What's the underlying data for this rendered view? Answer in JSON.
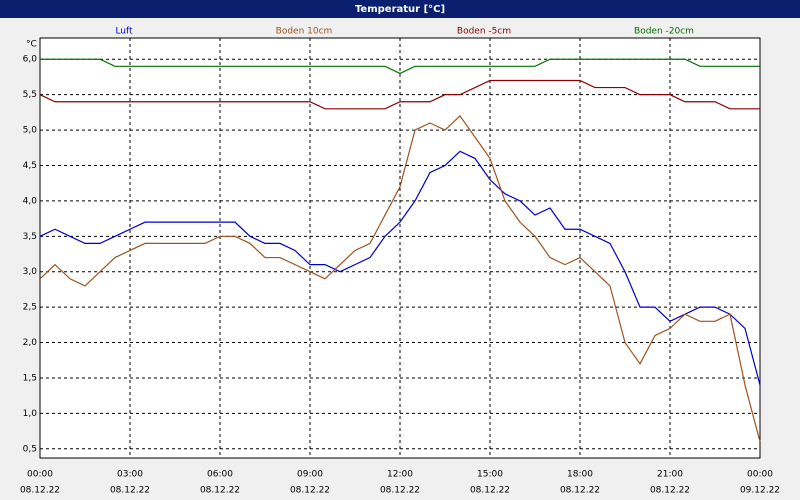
{
  "chart_data": {
    "type": "line",
    "title": "Temperatur [°C]",
    "y_unit": "°C",
    "x": [
      0,
      0.5,
      1,
      1.5,
      2,
      2.5,
      3,
      3.5,
      4,
      4.5,
      5,
      5.5,
      6,
      6.5,
      7,
      7.5,
      8,
      8.5,
      9,
      9.5,
      10,
      10.5,
      11,
      11.5,
      12,
      12.5,
      13,
      13.5,
      14,
      14.5,
      15,
      15.5,
      16,
      16.5,
      17,
      17.5,
      18,
      18.5,
      19,
      19.5,
      20,
      20.5,
      21,
      21.5,
      22,
      22.5,
      23,
      23.5,
      24
    ],
    "series": [
      {
        "name": "Luft",
        "color": "#0000cc",
        "values": [
          3.5,
          3.6,
          3.5,
          3.4,
          3.4,
          3.5,
          3.6,
          3.7,
          3.7,
          3.7,
          3.7,
          3.7,
          3.7,
          3.7,
          3.5,
          3.4,
          3.4,
          3.3,
          3.1,
          3.1,
          3.0,
          3.1,
          3.2,
          3.5,
          3.7,
          4.0,
          4.4,
          4.5,
          4.7,
          4.6,
          4.3,
          4.1,
          4.0,
          3.8,
          3.9,
          3.6,
          3.6,
          3.5,
          3.4,
          3.0,
          2.5,
          2.5,
          2.3,
          2.4,
          2.5,
          2.5,
          2.4,
          2.2,
          1.4
        ]
      },
      {
        "name": "Boden 10cm",
        "color": "#a0521e",
        "values": [
          2.9,
          3.1,
          2.9,
          2.8,
          3.0,
          3.2,
          3.3,
          3.4,
          3.4,
          3.4,
          3.4,
          3.4,
          3.5,
          3.5,
          3.4,
          3.2,
          3.2,
          3.1,
          3.0,
          2.9,
          3.1,
          3.3,
          3.4,
          3.8,
          4.2,
          5.0,
          5.1,
          5.0,
          5.2,
          4.9,
          4.6,
          4.0,
          3.7,
          3.5,
          3.2,
          3.1,
          3.2,
          3.0,
          2.8,
          2.0,
          1.7,
          2.1,
          2.2,
          2.4,
          2.3,
          2.3,
          2.4,
          1.4,
          0.6
        ]
      },
      {
        "name": "Boden -5cm",
        "color": "#8b0000",
        "values": [
          5.5,
          5.4,
          5.4,
          5.4,
          5.4,
          5.4,
          5.4,
          5.4,
          5.4,
          5.4,
          5.4,
          5.4,
          5.4,
          5.4,
          5.4,
          5.4,
          5.4,
          5.4,
          5.4,
          5.3,
          5.3,
          5.3,
          5.3,
          5.3,
          5.4,
          5.4,
          5.4,
          5.5,
          5.5,
          5.6,
          5.7,
          5.7,
          5.7,
          5.7,
          5.7,
          5.7,
          5.7,
          5.6,
          5.6,
          5.6,
          5.5,
          5.5,
          5.5,
          5.4,
          5.4,
          5.4,
          5.3,
          5.3,
          5.3
        ]
      },
      {
        "name": "Boden -20cm",
        "color": "#007000",
        "values": [
          6.0,
          6.0,
          6.0,
          6.0,
          6.0,
          5.9,
          5.9,
          5.9,
          5.9,
          5.9,
          5.9,
          5.9,
          5.9,
          5.9,
          5.9,
          5.9,
          5.9,
          5.9,
          5.9,
          5.9,
          5.9,
          5.9,
          5.9,
          5.9,
          5.8,
          5.9,
          5.9,
          5.9,
          5.9,
          5.9,
          5.9,
          5.9,
          5.9,
          5.9,
          6.0,
          6.0,
          6.0,
          6.0,
          6.0,
          6.0,
          6.0,
          6.0,
          6.0,
          6.0,
          5.9,
          5.9,
          5.9,
          5.9,
          5.9
        ]
      }
    ],
    "xlim": [
      0,
      24
    ],
    "xticks": [
      {
        "value": 0,
        "label": "00:00",
        "date": "08.12.22"
      },
      {
        "value": 3,
        "label": "03:00",
        "date": "08.12.22"
      },
      {
        "value": 6,
        "label": "06:00",
        "date": "08.12.22"
      },
      {
        "value": 9,
        "label": "09:00",
        "date": "08.12.22"
      },
      {
        "value": 12,
        "label": "12:00",
        "date": "08.12.22"
      },
      {
        "value": 15,
        "label": "15:00",
        "date": "08.12.22"
      },
      {
        "value": 18,
        "label": "18:00",
        "date": "08.12.22"
      },
      {
        "value": 21,
        "label": "21:00",
        "date": "08.12.22"
      },
      {
        "value": 24,
        "label": "00:00",
        "date": "09.12.22"
      }
    ],
    "ylim": [
      0.37,
      6.3
    ],
    "yticks": [
      {
        "value": 0.5,
        "label": "0,5"
      },
      {
        "value": 1,
        "label": "1,0"
      },
      {
        "value": 1.5,
        "label": "1,5"
      },
      {
        "value": 2,
        "label": "2,0"
      },
      {
        "value": 2.5,
        "label": "2,5"
      },
      {
        "value": 3,
        "label": "3,0"
      },
      {
        "value": 3.5,
        "label": "3,5"
      },
      {
        "value": 4,
        "label": "4,0"
      },
      {
        "value": 4.5,
        "label": "4,5"
      },
      {
        "value": 5,
        "label": "5,0"
      },
      {
        "value": 5.5,
        "label": "5,5"
      },
      {
        "value": 6,
        "label": "6,0"
      }
    ],
    "grid": true
  }
}
